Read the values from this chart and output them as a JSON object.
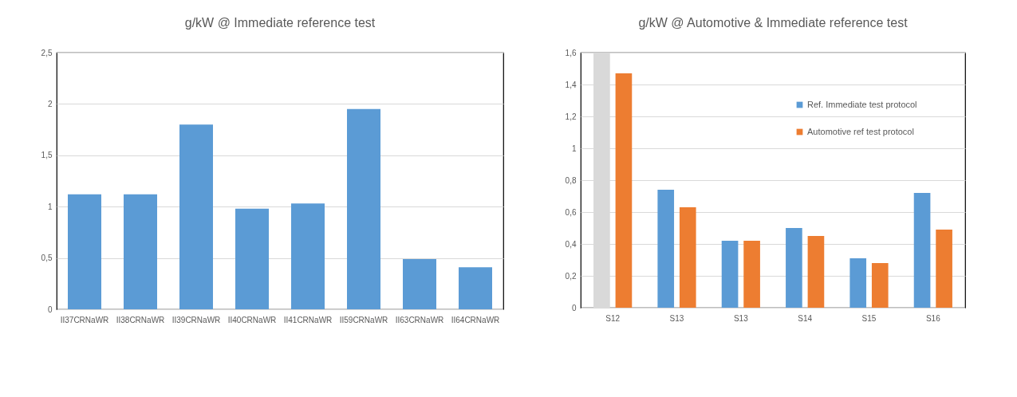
{
  "chart_data": [
    {
      "type": "bar",
      "title": "g/kW @ Immediate reference test",
      "categories": [
        "II37CRNaWR",
        "II38CRNaWR",
        "II39CRNaWR",
        "II40CRNaWR",
        "II41CRNaWR",
        "II59CRNaWR",
        "II63CRNaWR",
        "II64CRNaWR"
      ],
      "series": [
        {
          "color": "#5b9bd5",
          "values": [
            1.12,
            1.12,
            1.8,
            0.98,
            1.03,
            1.95,
            0.49,
            0.41
          ]
        }
      ],
      "ylim": [
        0,
        2.5
      ],
      "yticks": [
        0,
        {
          "value": 0.5,
          "label": "0,5"
        },
        1,
        {
          "value": 1.5,
          "label": "1,5"
        },
        2,
        {
          "value": 2.5,
          "label": "2,5"
        }
      ],
      "grid": "y",
      "legend": false
    },
    {
      "type": "bar",
      "title": "g/kW @ Automotive & Immediate reference test",
      "categories": [
        "S12",
        "S13",
        "S13",
        "S14",
        "S15",
        "S16"
      ],
      "series": [
        {
          "name": "Ref. Immediate test protocol",
          "color": "#5b9bd5",
          "colors": [
            "#d9d9d9",
            "#5b9bd5",
            "#5b9bd5",
            "#5b9bd5",
            "#5b9bd5",
            "#5b9bd5"
          ],
          "values": [
            1.6,
            0.74,
            0.42,
            0.5,
            0.31,
            0.72
          ]
        },
        {
          "name": "Automotive ref test protocol",
          "color": "#ed7d31",
          "values": [
            1.47,
            0.63,
            0.42,
            0.45,
            0.28,
            0.49
          ]
        }
      ],
      "ylim": [
        0,
        1.6
      ],
      "yticks": [
        0,
        {
          "value": 0.2,
          "label": "0,2"
        },
        {
          "value": 0.4,
          "label": "0,4"
        },
        {
          "value": 0.6,
          "label": "0,6"
        },
        {
          "value": 0.8,
          "label": "0,8"
        },
        1,
        {
          "value": 1.2,
          "label": "1,2"
        },
        {
          "value": 1.4,
          "label": "1,4"
        },
        {
          "value": 1.6,
          "label": "1,6"
        }
      ],
      "grid": "y",
      "legend": "top right"
    }
  ]
}
